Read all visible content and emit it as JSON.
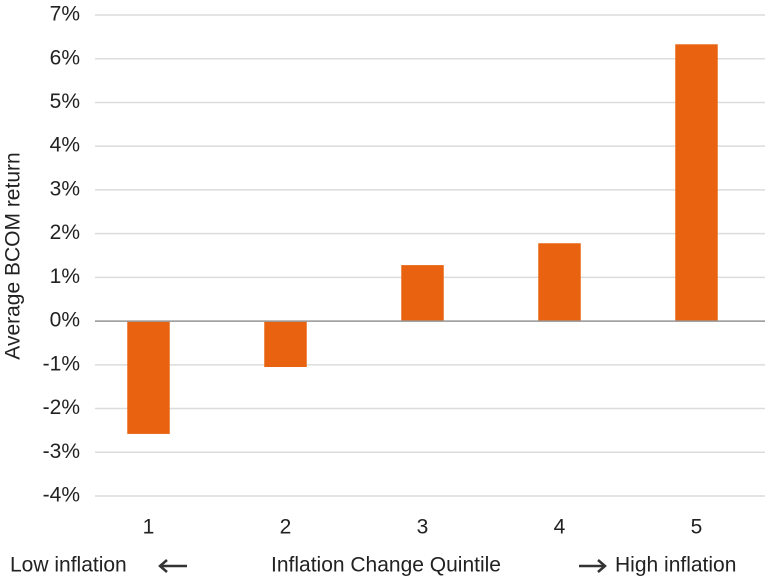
{
  "chart_data": {
    "type": "bar",
    "categories": [
      "1",
      "2",
      "3",
      "4",
      "5"
    ],
    "values": [
      -2.58,
      -1.05,
      1.28,
      1.78,
      6.33
    ],
    "color": "#e8620f",
    "ylabel": "Average BCOM return",
    "xlabel": "Inflation Change Quintile",
    "annotations": [
      "Low inflation",
      "High inflation"
    ],
    "ylim": [
      -4,
      7
    ],
    "yticks": [
      {
        "value": -4,
        "label": "-4%"
      },
      {
        "value": -3,
        "label": "-3%"
      },
      {
        "value": -2,
        "label": "-2%"
      },
      {
        "value": -1,
        "label": "-1%"
      },
      {
        "value": 0,
        "label": "0%"
      },
      {
        "value": 1,
        "label": "1%"
      },
      {
        "value": 2,
        "label": "2%"
      },
      {
        "value": 3,
        "label": "3%"
      },
      {
        "value": 4,
        "label": "4%"
      },
      {
        "value": 5,
        "label": "5%"
      },
      {
        "value": 6,
        "label": "6%"
      },
      {
        "value": 7,
        "label": "7%"
      }
    ],
    "grid": true
  }
}
